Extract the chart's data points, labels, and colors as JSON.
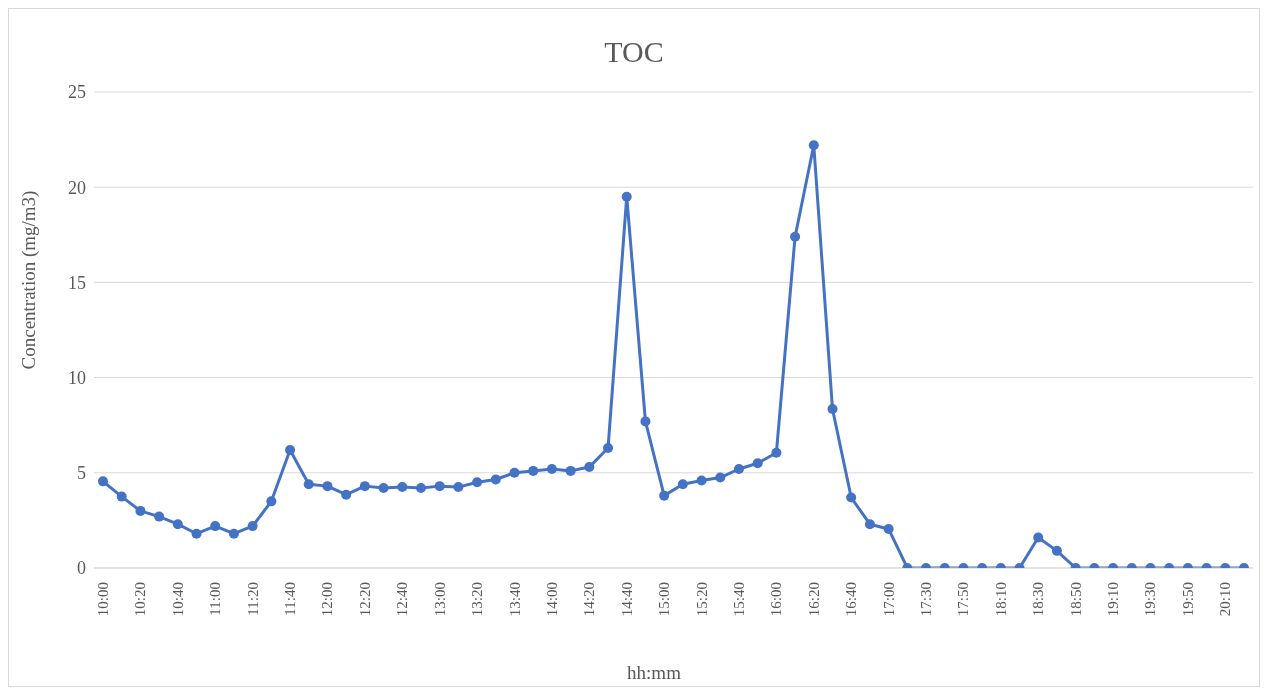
{
  "chart_data": {
    "type": "line",
    "title": "TOC",
    "xlabel": "hh:mm",
    "ylabel": "Concentration (mg/m3)",
    "categories": [
      "10:00",
      null,
      "10:20",
      null,
      "10:40",
      null,
      "11:00",
      null,
      "11:20",
      null,
      "11:40",
      null,
      "12:00",
      null,
      "12:20",
      null,
      "12:40",
      null,
      "13:00",
      null,
      "13:20",
      null,
      "13:40",
      null,
      "14:00",
      null,
      "14:20",
      null,
      "14:40",
      null,
      "15:00",
      null,
      "15:20",
      null,
      "15:40",
      null,
      "16:00",
      null,
      "16:20",
      null,
      "16:40",
      null,
      "17:00",
      null,
      "17:30",
      null,
      "17:50",
      null,
      "18:10",
      null,
      "18:30",
      null,
      "18:50",
      null,
      "19:10",
      null,
      "19:30",
      null,
      "19:50",
      null,
      "20:10",
      null
    ],
    "series": [
      {
        "color": "#4472c4",
        "values": [
          4.55,
          3.75,
          3.0,
          2.7,
          2.3,
          1.8,
          2.2,
          1.8,
          2.2,
          3.5,
          6.2,
          4.4,
          4.3,
          3.85,
          4.3,
          4.2,
          4.25,
          4.2,
          4.3,
          4.25,
          4.5,
          4.65,
          5.0,
          5.1,
          5.2,
          5.1,
          5.3,
          6.3,
          19.5,
          7.7,
          3.8,
          4.4,
          4.6,
          4.75,
          5.2,
          5.5,
          6.05,
          17.4,
          22.2,
          8.35,
          3.7,
          2.3,
          2.05,
          0,
          0,
          0,
          0,
          0,
          0,
          0,
          1.6,
          0.9,
          0,
          0,
          0,
          0,
          0,
          0,
          0,
          0,
          0,
          0
        ]
      }
    ],
    "ylim": [
      0,
      25
    ],
    "yticks": [
      0,
      5,
      10,
      15,
      20,
      25
    ],
    "grid": "y",
    "legend": false,
    "marker": "circle",
    "line_style": "solid"
  }
}
